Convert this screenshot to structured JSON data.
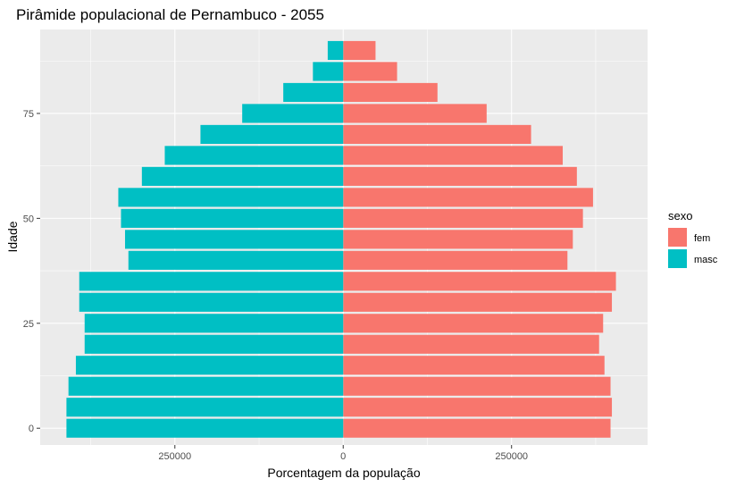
{
  "chart_data": {
    "type": "bar",
    "orientation": "horizontal-diverging",
    "title": "Pirâmide populacional de Pernambuco - 2055",
    "xlabel": "Porcentagem da população",
    "ylabel": "Idade",
    "x_ticks": [
      {
        "value": -250000,
        "label": "250000"
      },
      {
        "value": 0,
        "label": "0"
      },
      {
        "value": 250000,
        "label": "250000"
      }
    ],
    "y_ticks": [
      {
        "value": 0,
        "label": "0"
      },
      {
        "value": 25,
        "label": "25"
      },
      {
        "value": 50,
        "label": "50"
      },
      {
        "value": 75,
        "label": "75"
      }
    ],
    "xlim": [
      -450000,
      452000
    ],
    "ylim": [
      -4,
      95
    ],
    "grid": true,
    "legend": {
      "title": "sexo",
      "position": "right"
    },
    "age_groups": [
      0,
      5,
      10,
      15,
      20,
      25,
      30,
      35,
      40,
      45,
      50,
      55,
      60,
      65,
      70,
      75,
      80,
      85,
      90
    ],
    "series": [
      {
        "name": "fem",
        "color": "#F8766D",
        "values": [
          397000,
          399000,
          397000,
          388000,
          380000,
          386000,
          399000,
          405000,
          333000,
          341000,
          356000,
          371000,
          347000,
          326000,
          279000,
          213000,
          140000,
          80000,
          48000
        ]
      },
      {
        "name": "masc",
        "color": "#00BFC4",
        "values": [
          -411000,
          -411000,
          -408000,
          -397000,
          -384000,
          -384000,
          -392000,
          -392000,
          -319000,
          -324000,
          -330000,
          -334000,
          -299000,
          -265000,
          -212000,
          -150000,
          -89000,
          -45000,
          -23000
        ]
      }
    ]
  }
}
